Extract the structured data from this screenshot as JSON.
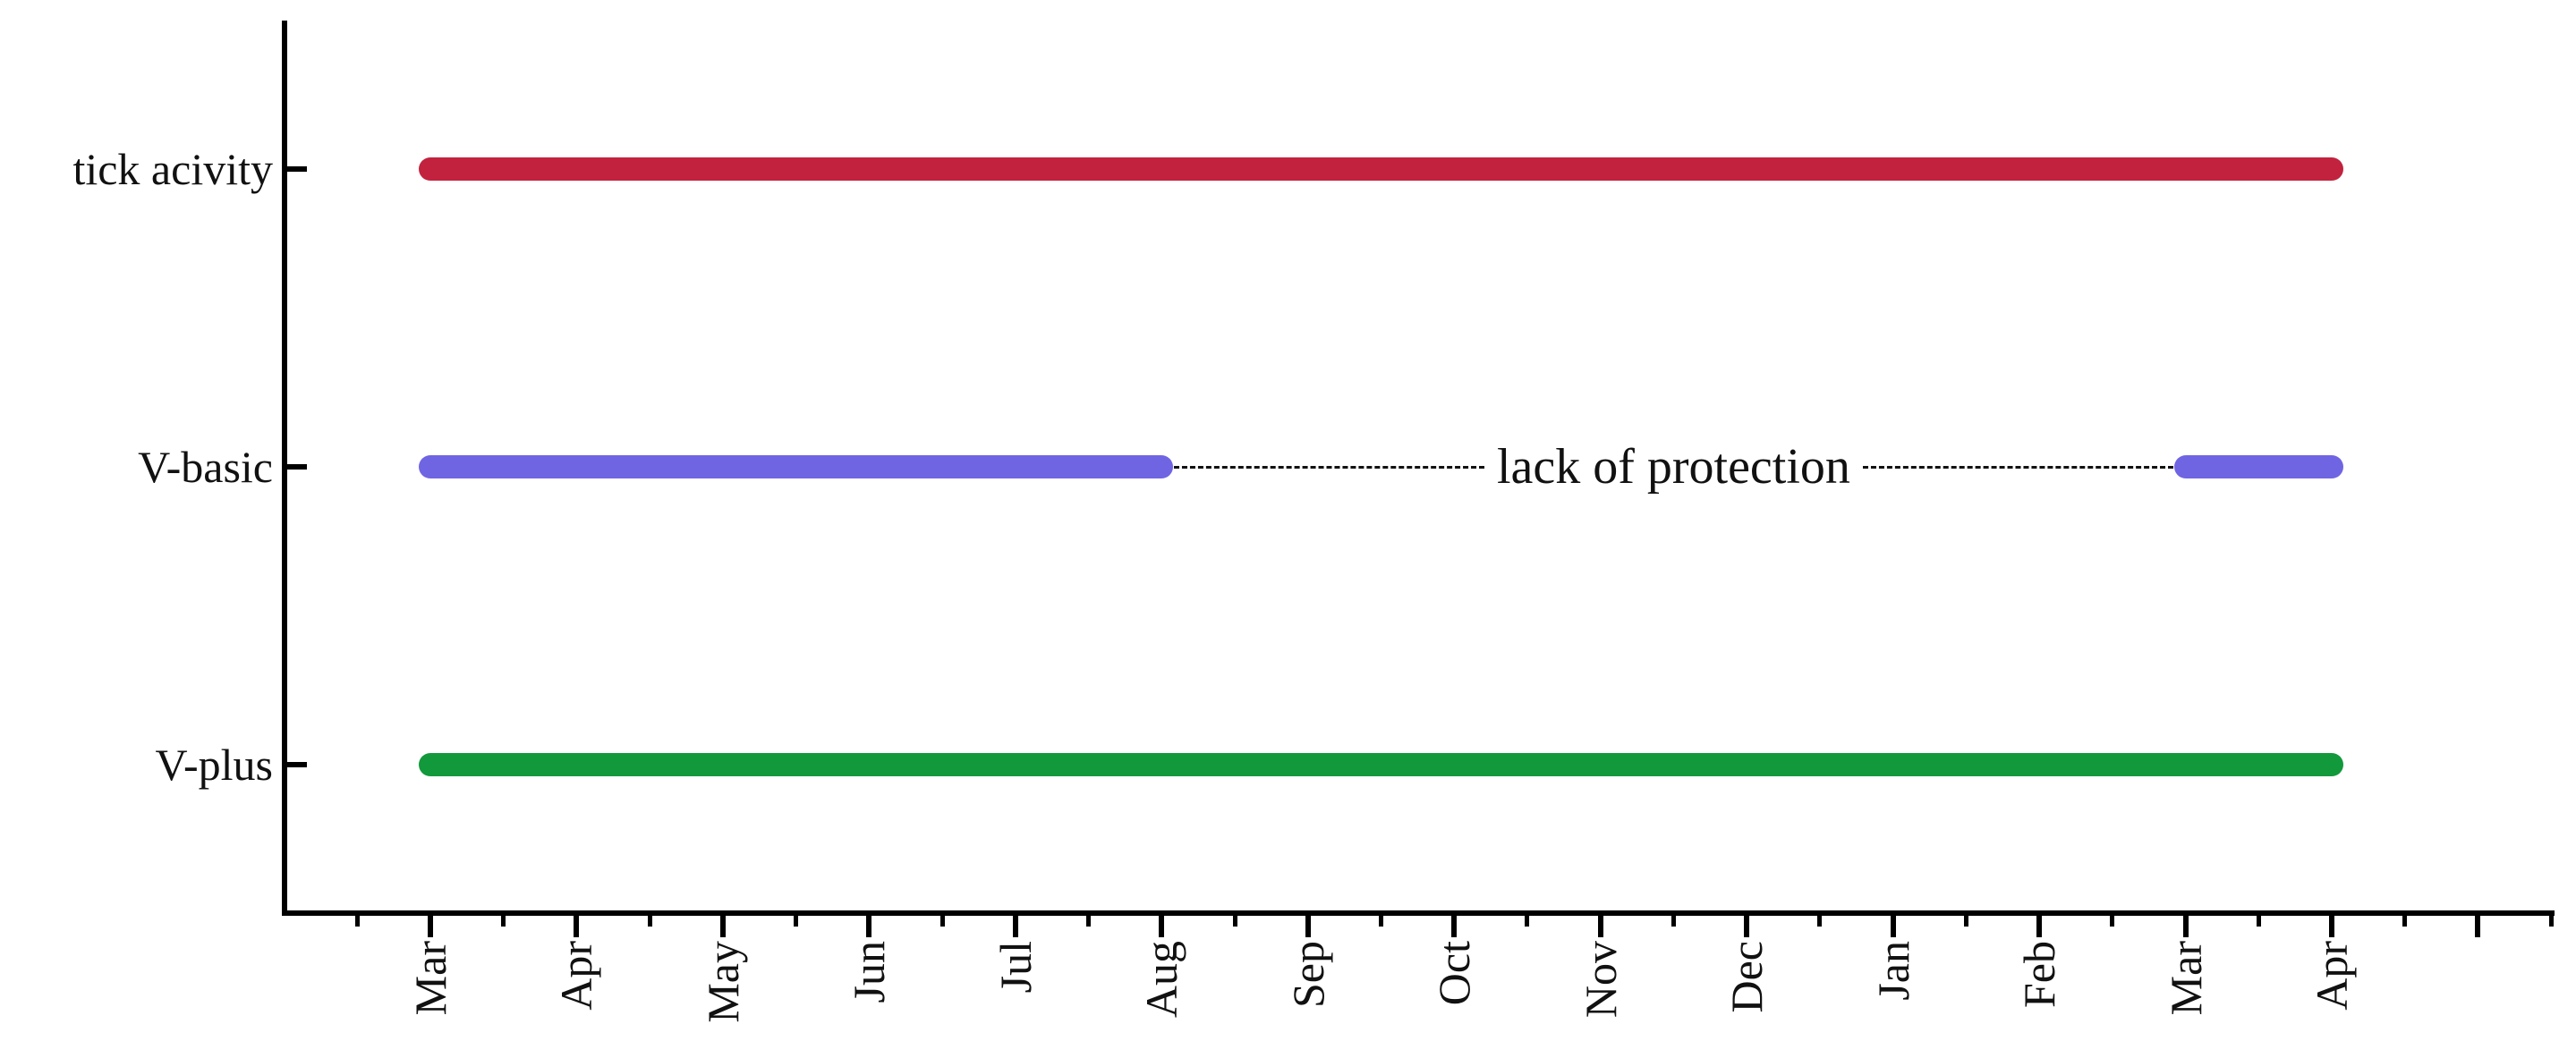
{
  "chart_data": {
    "type": "gantt",
    "title": "",
    "orientation": "horizontal",
    "x_axis": {
      "tick_labels": [
        "Mar",
        "Apr",
        "May",
        "Jun",
        "Jul",
        "Aug",
        "Sep",
        "Oct",
        "Nov",
        "Dec",
        "Jan",
        "Feb",
        "Mar",
        "Apr"
      ],
      "extra_unlabeled_major_ticks": 1,
      "minor_ticks_between_majors": true,
      "label_rotation_deg": 90
    },
    "y_axis": {
      "categories": [
        "tick acivity",
        "V-basic",
        "V-plus"
      ]
    },
    "series": [
      {
        "name": "tick acivity",
        "color": "#c2223e",
        "segments": [
          [
            0,
            13
          ]
        ]
      },
      {
        "name": "V-basic",
        "color": "#6f65e3",
        "segments": [
          [
            0,
            5
          ],
          [
            12,
            13
          ]
        ]
      },
      {
        "name": "V-plus",
        "color": "#12993c",
        "segments": [
          [
            0,
            13
          ]
        ]
      }
    ],
    "annotation": {
      "text": "lack of protection",
      "row": 1,
      "from": 5,
      "to": 12,
      "style": "dashed-line"
    },
    "axis_color": "#000000",
    "grid": "off",
    "legend": "none"
  }
}
